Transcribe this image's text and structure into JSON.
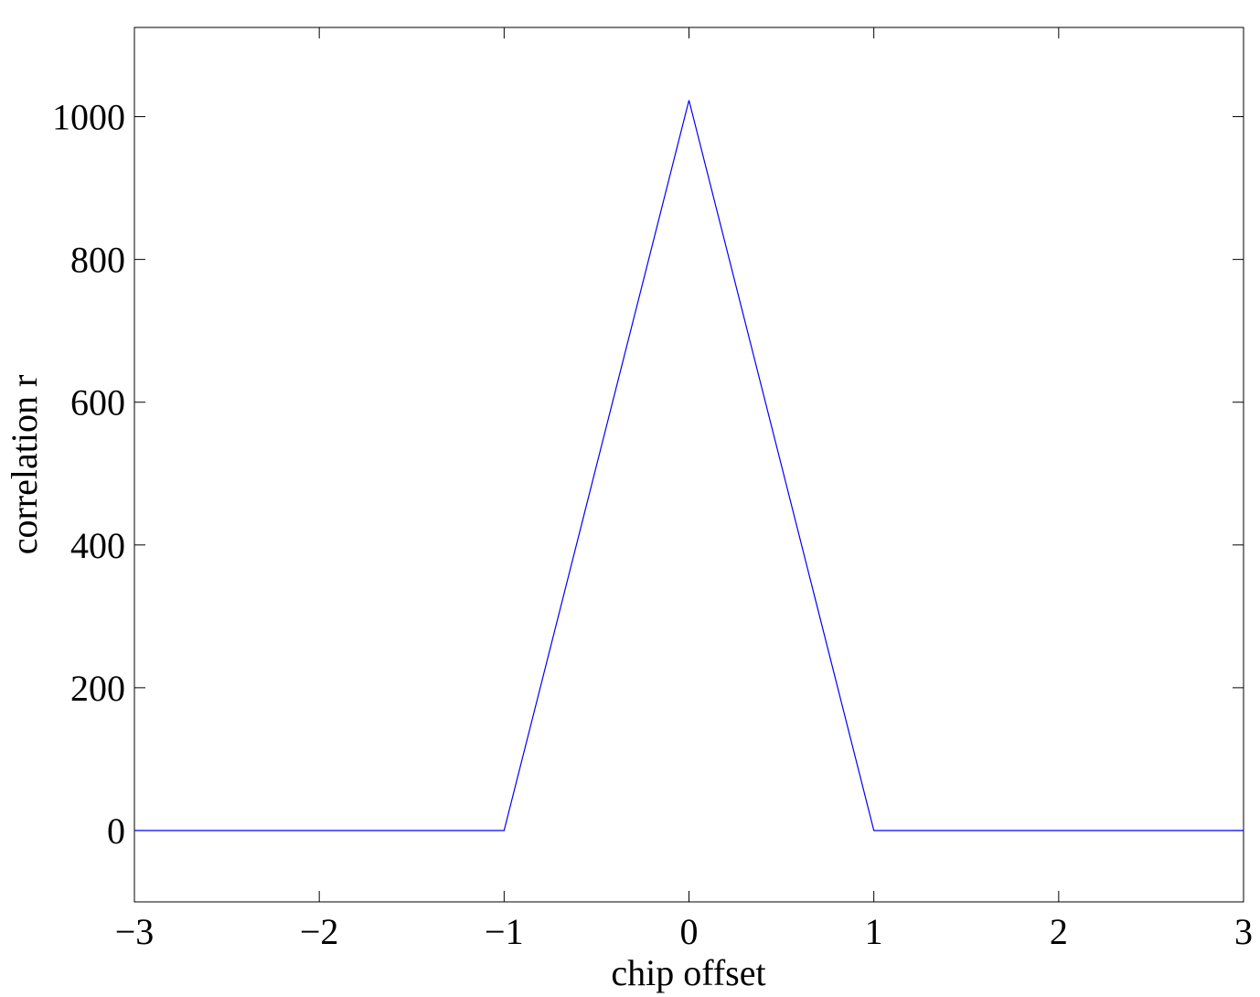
{
  "chart_data": {
    "type": "line",
    "title": "",
    "xlabel": "chip offset",
    "ylabel": "correlation r",
    "xlim": [
      -3,
      3
    ],
    "ylim": [
      -100,
      1125
    ],
    "xticks": [
      -3,
      -2,
      -1,
      0,
      1,
      2,
      3
    ],
    "xtick_labels": [
      "−3",
      "−2",
      "−1",
      "0",
      "1",
      "2",
      "3"
    ],
    "yticks": [
      0,
      200,
      400,
      600,
      800,
      1000
    ],
    "ytick_labels": [
      "0",
      "200",
      "400",
      "600",
      "800",
      "1000"
    ],
    "grid": false,
    "series": [
      {
        "color": "#0000ff",
        "x": [
          -3,
          -1,
          0,
          1,
          3
        ],
        "y": [
          0,
          0,
          1023,
          0,
          0
        ]
      }
    ]
  }
}
